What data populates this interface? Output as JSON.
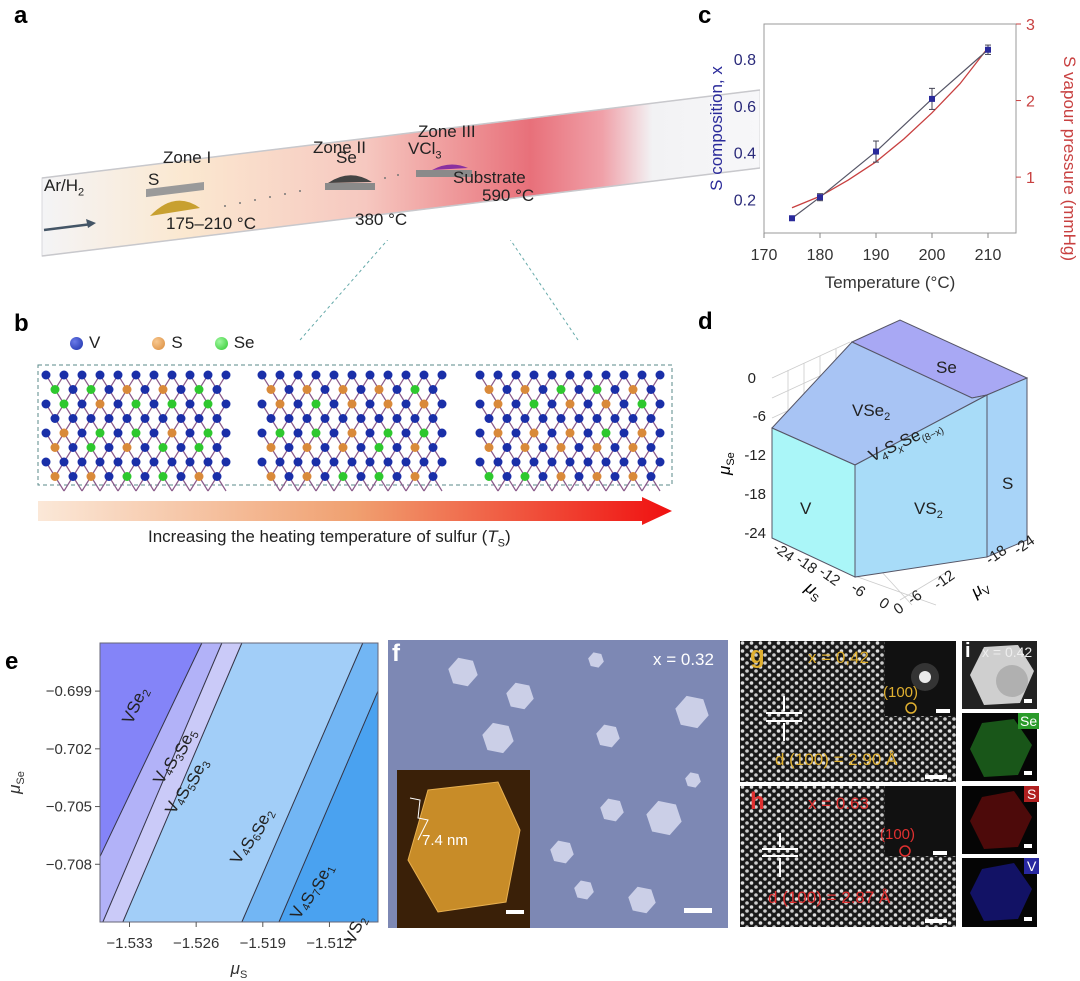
{
  "panel_labels": {
    "a": "a",
    "b": "b",
    "c": "c",
    "d": "d",
    "e": "e",
    "f": "f",
    "g": "g",
    "h": "h",
    "i": "i"
  },
  "panel_a": {
    "gas": "Ar/H",
    "gas_sub": "2",
    "zones": [
      "Zone I",
      "Zone II",
      "Zone III"
    ],
    "sources": {
      "s": "S",
      "se": "Se",
      "vcl": "VCl",
      "vcl_sub": "3",
      "substrate": "Substrate"
    },
    "temps": {
      "zone1": "175–210 °C",
      "zone2": "380 °C",
      "zone3": "590 °C"
    }
  },
  "panel_b": {
    "legend": [
      {
        "label": "V",
        "color": "#1a2fa8"
      },
      {
        "label": "S",
        "color": "#d98a3a"
      },
      {
        "label": "Se",
        "color": "#2ec82e"
      }
    ],
    "caption": "Increasing the heating temperature of sulfur (",
    "caption_var": "T",
    "caption_sub": "S",
    "caption_end": ")"
  },
  "chart_data": [
    {
      "type": "line",
      "panel": "c",
      "xlabel": "Temperature (°C)",
      "ylabel": "S composition, x",
      "y2label": "S vapour pressure (mmHg)",
      "xlim": [
        170,
        215
      ],
      "ylim": [
        0.057,
        0.95
      ],
      "y2lim": [
        0.27,
        3
      ],
      "xticks": [
        170,
        180,
        190,
        200,
        210
      ],
      "yticks": [
        0.2,
        0.4,
        0.6,
        0.8
      ],
      "y2ticks": [
        1,
        2,
        3
      ],
      "series": [
        {
          "axis": "left",
          "color": "#2a2a9a",
          "x": [
            175,
            180,
            190,
            200,
            210
          ],
          "y": [
            0.12,
            0.21,
            0.405,
            0.63,
            0.84
          ],
          "err": [
            0.0,
            0.015,
            0.045,
            0.045,
            0.02
          ]
        },
        {
          "axis": "right",
          "color": "#c84040",
          "x": [
            175,
            180,
            185,
            190,
            195,
            200,
            205,
            210
          ],
          "y": [
            0.6,
            0.75,
            0.96,
            1.2,
            1.5,
            1.84,
            2.22,
            2.69
          ]
        }
      ]
    },
    {
      "type": "area",
      "panel": "e",
      "xlabel": "μ",
      "xlabel_sub": "S",
      "ylabel": "μ",
      "ylabel_sub": "Se",
      "xlim": [
        -1.5361,
        -1.5069
      ],
      "ylim": [
        -0.711,
        -0.6965
      ],
      "xticks": [
        "-1.533",
        "-1.526",
        "-1.519",
        "-1.512"
      ],
      "xtick_values": [
        -1.533,
        -1.526,
        -1.519,
        -1.512
      ],
      "yticks": [
        "-0.699",
        "-0.702",
        "-0.705",
        "-0.708"
      ],
      "ytick_values": [
        -0.699,
        -0.702,
        -0.705,
        -0.708
      ],
      "regions": [
        {
          "name": "VSe",
          "sub": "2",
          "color": "#8484f8"
        },
        {
          "name": "V4S3Se5",
          "color": "#b2b2f8"
        },
        {
          "name": "V4S5Se3",
          "color": "#cacaf8"
        },
        {
          "name": "V4S6Se2",
          "color": "#a2cef8"
        },
        {
          "name": "V4S7Se1",
          "color": "#72b6f4"
        },
        {
          "name": "VS",
          "sub": "2",
          "color": "#4aa2f0"
        }
      ],
      "boundaries": [
        [
          [
            -1.5254,
            -0.6965
          ],
          [
            -1.5361,
            -0.7076
          ]
        ],
        [
          [
            -1.5233,
            -0.6965
          ],
          [
            -1.5358,
            -0.711
          ]
        ],
        [
          [
            -1.5212,
            -0.6965
          ],
          [
            -1.5337,
            -0.711
          ]
        ],
        [
          [
            -1.5085,
            -0.6965
          ],
          [
            -1.5212,
            -0.711
          ]
        ],
        [
          [
            -1.5069,
            -0.699
          ],
          [
            -1.5173,
            -0.711
          ]
        ]
      ]
    }
  ],
  "panel_d": {
    "regions": {
      "se": "Se",
      "vse2": "VSe",
      "vse2_sub": "2",
      "mixed": "V",
      "mixed_sub1": "4",
      "mixed_s": "S",
      "mixed_sub2": "x",
      "mixed_se": "Se",
      "mixed_sub3": "(8−x)",
      "v": "V",
      "vs2": "VS",
      "vs2_sub": "2",
      "s": "S"
    },
    "colors": {
      "top": "#a8a8f4",
      "vse2": "#a8c4f4",
      "v": "#aaf6f8",
      "vs2": "#a8dcf8",
      "s": "#a8d4f8"
    },
    "zlabel": "μ",
    "zlabel_sub": "Se",
    "zticks": [
      "0",
      "-6",
      "-12",
      "-18",
      "-24"
    ],
    "xlabel": "μ",
    "xlabel_sub": "S",
    "xticks": [
      "-24",
      "-18",
      "-12",
      "-6",
      "0"
    ],
    "ylabel": "μ",
    "ylabel_sub": "V",
    "yticks": [
      "0",
      "-6",
      "-12",
      "-18",
      "-24"
    ]
  },
  "panel_f": {
    "composition": "x = 0.32",
    "afm_height": "7.4 nm"
  },
  "panel_g": {
    "composition": "x = 0,42",
    "spot": "(100)",
    "spacing": "d (100) = 2.90 Å",
    "color": "#e0b030"
  },
  "panel_h": {
    "composition": "x = 0.63",
    "spot": "(100)",
    "spacing": "d (100) = 2.87 Å",
    "color": "#e03030"
  },
  "panel_i": {
    "composition": "x = 0.42",
    "maps": [
      {
        "label": "Se",
        "color": "#2a9a2a"
      },
      {
        "label": "S",
        "color": "#b02020"
      },
      {
        "label": "V",
        "color": "#2828a0"
      }
    ]
  }
}
